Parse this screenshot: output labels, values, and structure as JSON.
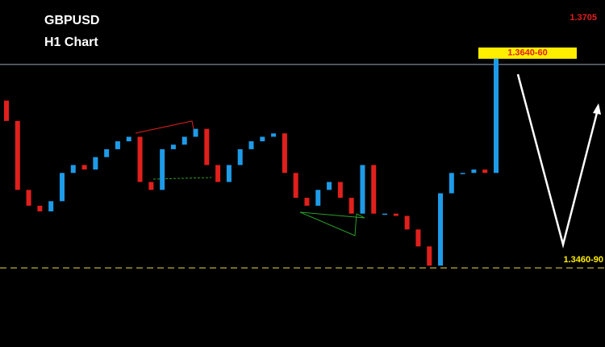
{
  "chart_data": {
    "type": "candlestick",
    "title": "GBPUSD",
    "subtitle": "H1 Chart",
    "annotations": [
      "1.3705"
    ],
    "open": [
      1.3608,
      1.359,
      1.3529,
      1.3515,
      1.351,
      1.3519,
      1.3544,
      1.3551,
      1.3547,
      1.3558,
      1.3565,
      1.3572,
      1.3576,
      1.3536,
      1.3529,
      1.3565,
      1.3569,
      1.3576,
      1.3583,
      1.3551,
      1.3536,
      1.3551,
      1.3565,
      1.3572,
      1.3576,
      1.3579,
      1.3544,
      1.3522,
      1.3515,
      1.3529,
      1.3536,
      1.3522,
      1.3508,
      1.3551,
      1.3508,
      1.3508,
      1.3506,
      1.3494,
      1.3479,
      1.3462,
      1.3526,
      1.3544,
      1.3544,
      1.3547,
      1.3544
    ],
    "close": [
      1.359,
      1.3529,
      1.3515,
      1.351,
      1.3519,
      1.3544,
      1.3551,
      1.3547,
      1.3558,
      1.3565,
      1.3572,
      1.3576,
      1.3536,
      1.3529,
      1.3565,
      1.3569,
      1.3576,
      1.3583,
      1.3551,
      1.3536,
      1.3551,
      1.3565,
      1.3572,
      1.3576,
      1.3579,
      1.3544,
      1.3522,
      1.3515,
      1.3529,
      1.3536,
      1.3522,
      1.3508,
      1.3551,
      1.3508,
      1.3508,
      1.3506,
      1.3494,
      1.3479,
      1.3462,
      1.3526,
      1.3544,
      1.3544,
      1.3547,
      1.3544,
      1.3645
    ],
    "up_color": "#1e9be8",
    "down_color": "#e0201c",
    "ylim": [
      1.339,
      1.3697
    ],
    "levels": [
      {
        "value": 1.364,
        "label": "1.3640-60"
      },
      {
        "value": 1.346,
        "label": "1.3460-90"
      }
    ]
  }
}
